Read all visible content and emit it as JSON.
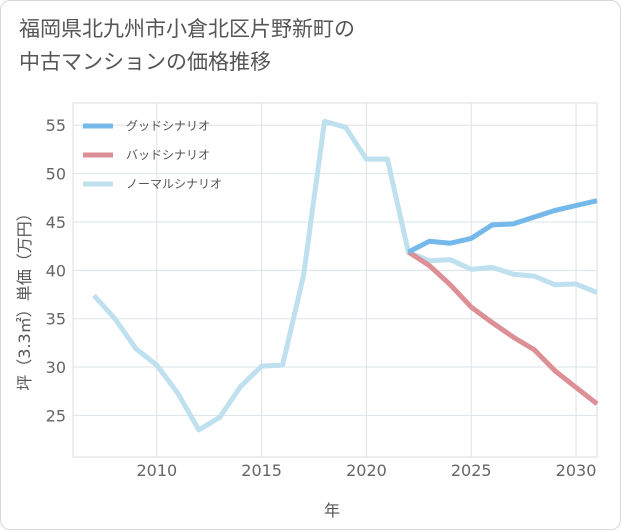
{
  "title": "福岡県北九州市小倉北区片野新町の\n中古マンションの価格推移",
  "chart_data": {
    "type": "line",
    "xlabel": "年",
    "ylabel": "坪（3.3㎡）単価（万円）",
    "xlim": [
      2006,
      2031
    ],
    "ylim": [
      20.7,
      57.3
    ],
    "x_ticks": [
      2010,
      2015,
      2020,
      2025,
      2030
    ],
    "y_ticks": [
      25,
      30,
      35,
      40,
      45,
      50,
      55
    ],
    "grid": true,
    "legend_position": "top-left",
    "series": [
      {
        "name": "グッドシナリオ",
        "color": "#74b9ea",
        "x": [
          2022,
          2023,
          2024,
          2025,
          2026,
          2027,
          2028,
          2029,
          2030,
          2031
        ],
        "values": [
          41.9,
          43.0,
          42.8,
          43.3,
          44.7,
          44.8,
          45.5,
          46.2,
          46.7,
          47.2
        ]
      },
      {
        "name": "バッドシナリオ",
        "color": "#dd8f96",
        "x": [
          2022,
          2023,
          2024,
          2025,
          2026,
          2027,
          2028,
          2029,
          2030,
          2031
        ],
        "values": [
          41.9,
          40.5,
          38.5,
          36.2,
          34.6,
          33.1,
          31.8,
          29.6,
          27.9,
          26.2
        ]
      },
      {
        "name": "ノーマルシナリオ",
        "color": "#bfe0ef",
        "x": [
          2007,
          2008,
          2009,
          2010,
          2011,
          2012,
          2013,
          2014,
          2015,
          2016,
          2017,
          2018,
          2019,
          2020,
          2021,
          2022,
          2023,
          2024,
          2025,
          2026,
          2027,
          2028,
          2029,
          2030,
          2031
        ],
        "values": [
          37.4,
          35.0,
          31.9,
          30.2,
          27.3,
          23.5,
          24.8,
          28.0,
          30.1,
          30.2,
          39.5,
          55.4,
          54.8,
          51.5,
          51.5,
          41.9,
          41.0,
          41.1,
          40.1,
          40.3,
          39.6,
          39.4,
          38.5,
          38.6,
          37.7
        ]
      }
    ]
  }
}
